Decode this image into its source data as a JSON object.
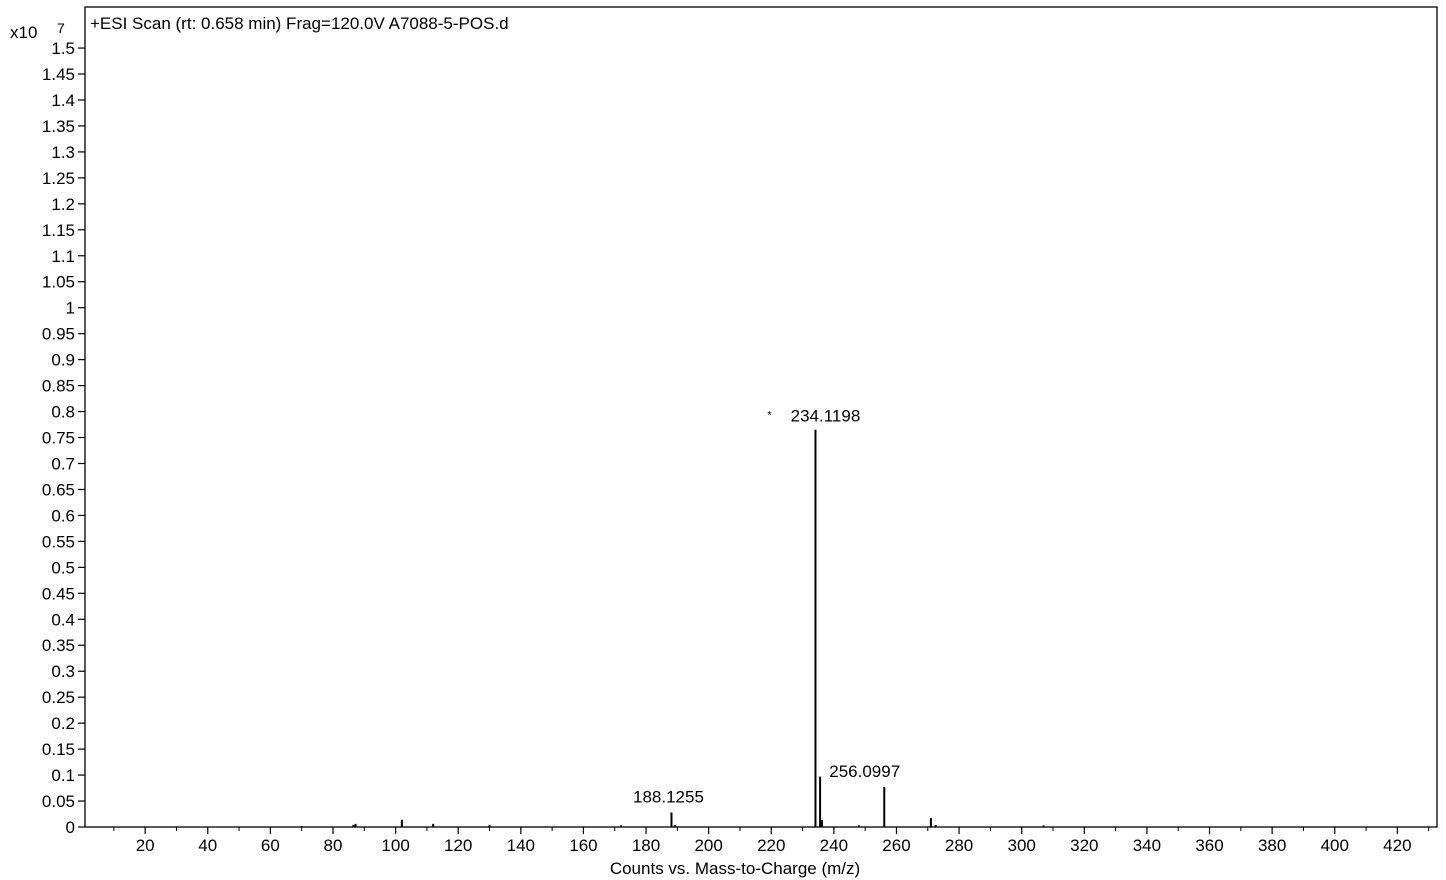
{
  "chart_data": {
    "type": "bar",
    "title": "+ESI Scan (rt: 0.658 min) Frag=120.0V A7088-5-POS.d",
    "xlabel": "Counts vs. Mass-to-Charge (m/z)",
    "y_exponent_prefix": "x10",
    "y_exponent": "7",
    "xlim": [
      0,
      432
    ],
    "ylim": [
      0,
      1.58
    ],
    "x_ticks": [
      20,
      40,
      60,
      80,
      100,
      120,
      140,
      160,
      180,
      200,
      220,
      240,
      260,
      280,
      300,
      320,
      340,
      360,
      380,
      400,
      420
    ],
    "y_ticks": [
      "0",
      "0.05",
      "0.1",
      "0.15",
      "0.2",
      "0.25",
      "0.3",
      "0.35",
      "0.4",
      "0.45",
      "0.5",
      "0.55",
      "0.6",
      "0.65",
      "0.7",
      "0.75",
      "0.8",
      "0.85",
      "0.9",
      "0.95",
      "1",
      "1.05",
      "1.1",
      "1.15",
      "1.2",
      "1.25",
      "1.3",
      "1.35",
      "1.4",
      "1.45",
      "1.5"
    ],
    "peaks": [
      {
        "x": 70.0,
        "y": 0.002
      },
      {
        "x": 86.5,
        "y": 0.004
      },
      {
        "x": 87.2,
        "y": 0.006
      },
      {
        "x": 102.0,
        "y": 0.014
      },
      {
        "x": 112.0,
        "y": 0.006
      },
      {
        "x": 130.0,
        "y": 0.004
      },
      {
        "x": 172.0,
        "y": 0.003
      },
      {
        "x": 188.1255,
        "y": 0.028
      },
      {
        "x": 189.2,
        "y": 0.004
      },
      {
        "x": 234.1198,
        "y": 0.765
      },
      {
        "x": 235.6,
        "y": 0.097
      },
      {
        "x": 236.2,
        "y": 0.013
      },
      {
        "x": 248.0,
        "y": 0.003
      },
      {
        "x": 256.0997,
        "y": 0.077
      },
      {
        "x": 271.0,
        "y": 0.017
      },
      {
        "x": 272.5,
        "y": 0.004
      },
      {
        "x": 307.0,
        "y": 0.003
      }
    ],
    "peak_labels": [
      {
        "x": 234.1198,
        "y": 0.765,
        "text": "234.1198",
        "marker": "*"
      },
      {
        "x": 256.0997,
        "y": 0.077,
        "text": "256.0997",
        "marker": ""
      },
      {
        "x": 188.1255,
        "y": 0.028,
        "text": "188.1255",
        "marker": ""
      }
    ],
    "grid": false,
    "series_color": "#000000"
  }
}
